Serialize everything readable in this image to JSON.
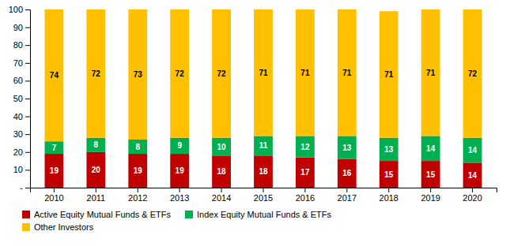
{
  "chart_data": {
    "type": "bar",
    "stacked": true,
    "data_labels": true,
    "grid": false,
    "legend": "bottom",
    "categories": [
      "2010",
      "2011",
      "2012",
      "2013",
      "2014",
      "2015",
      "2016",
      "2017",
      "2018",
      "2019",
      "2020"
    ],
    "series": [
      {
        "name": "Active Equity Mutual Funds & ETFs",
        "color": "#C00000",
        "values": [
          19,
          20,
          19,
          19,
          18,
          18,
          17,
          16,
          15,
          15,
          14
        ]
      },
      {
        "name": "Index Equity Mutual Funds & ETFs",
        "color": "#00B050",
        "values": [
          7,
          8,
          8,
          9,
          10,
          11,
          12,
          13,
          13,
          14,
          14
        ]
      },
      {
        "name": "Other Investors",
        "color": "#FFC000",
        "values": [
          74,
          72,
          73,
          72,
          72,
          71,
          71,
          71,
          71,
          71,
          72
        ]
      }
    ],
    "ylim": [
      0,
      100
    ],
    "yticks": [
      {
        "value": 0,
        "label": "-"
      },
      10,
      20,
      30,
      40,
      50,
      60,
      70,
      80,
      90,
      100
    ]
  }
}
